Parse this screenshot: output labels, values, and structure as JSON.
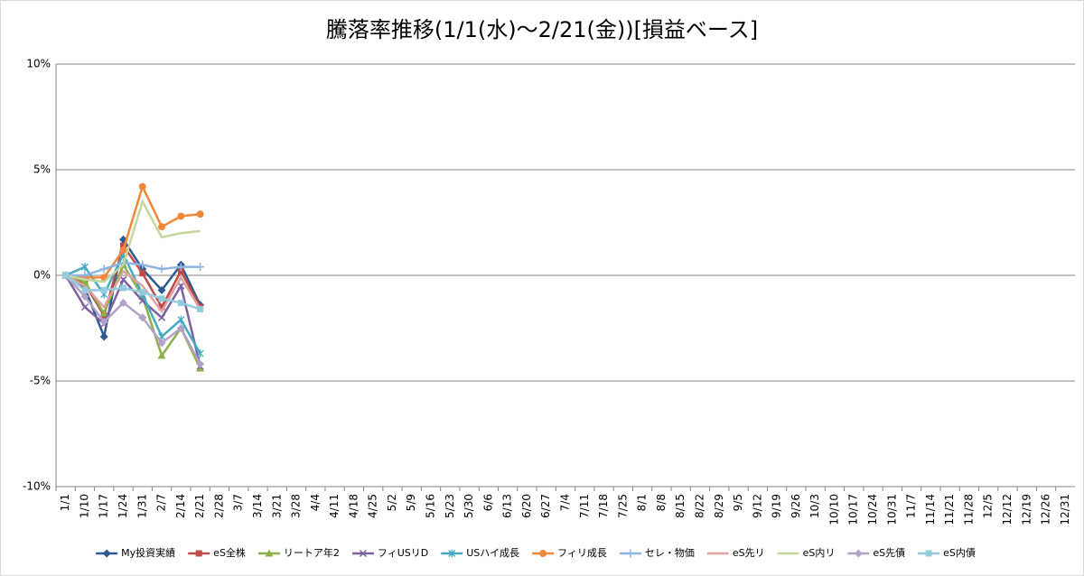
{
  "chart_data": {
    "type": "line",
    "title": "騰落率推移(1/1(水)～2/21(金))[損益ベース]",
    "categories": [
      "1/1",
      "1/10",
      "1/17",
      "1/24",
      "1/31",
      "2/7",
      "2/14",
      "2/21",
      "2/28",
      "3/7",
      "3/14",
      "3/21",
      "3/28",
      "4/4",
      "4/11",
      "4/18",
      "4/25",
      "5/2",
      "5/9",
      "5/16",
      "5/23",
      "5/30",
      "6/6",
      "6/13",
      "6/20",
      "6/27",
      "7/4",
      "7/11",
      "7/18",
      "7/25",
      "8/1",
      "8/8",
      "8/15",
      "8/22",
      "8/29",
      "9/5",
      "9/12",
      "9/19",
      "9/26",
      "10/3",
      "10/10",
      "10/17",
      "10/24",
      "10/31",
      "11/7",
      "11/14",
      "11/21",
      "11/28",
      "12/5",
      "12/12",
      "12/19",
      "12/26",
      "12/31"
    ],
    "ylim": [
      -10,
      10
    ],
    "yticks": [
      {
        "value": -10,
        "label": "-10%"
      },
      {
        "value": -5,
        "label": "-5%"
      },
      {
        "value": 0,
        "label": "0%"
      },
      {
        "value": 5,
        "label": "5%"
      },
      {
        "value": 10,
        "label": "10%"
      }
    ],
    "grid": true,
    "legend": "bottom",
    "series": [
      {
        "name": "My投資実績",
        "color": "#2e5b8f",
        "marker": "diamond",
        "values": [
          0,
          -0.6,
          -2.9,
          1.7,
          0.3,
          -0.7,
          0.5,
          -1.4,
          null,
          null,
          null,
          null,
          null,
          null,
          null,
          null,
          null,
          null,
          null,
          null,
          null,
          null,
          null,
          null,
          null,
          null,
          null,
          null,
          null,
          null,
          null,
          null,
          null,
          null,
          null,
          null,
          null,
          null,
          null,
          null,
          null,
          null,
          null,
          null,
          null,
          null,
          null,
          null,
          null,
          null,
          null,
          null,
          null
        ]
      },
      {
        "name": "eS全株",
        "color": "#be4b48",
        "marker": "square",
        "values": [
          0,
          -0.4,
          -1.9,
          1.4,
          0.1,
          -1.5,
          0.2,
          -1.5,
          null,
          null,
          null,
          null,
          null,
          null,
          null,
          null,
          null,
          null,
          null,
          null,
          null,
          null,
          null,
          null,
          null,
          null,
          null,
          null,
          null,
          null,
          null,
          null,
          null,
          null,
          null,
          null,
          null,
          null,
          null,
          null,
          null,
          null,
          null,
          null,
          null,
          null,
          null,
          null,
          null,
          null,
          null,
          null,
          null
        ]
      },
      {
        "name": "リートア年2",
        "color": "#8cb04a",
        "marker": "triangle",
        "values": [
          0,
          -0.3,
          -1.8,
          0.5,
          -1.0,
          -3.8,
          -2.5,
          -4.4,
          null,
          null,
          null,
          null,
          null,
          null,
          null,
          null,
          null,
          null,
          null,
          null,
          null,
          null,
          null,
          null,
          null,
          null,
          null,
          null,
          null,
          null,
          null,
          null,
          null,
          null,
          null,
          null,
          null,
          null,
          null,
          null,
          null,
          null,
          null,
          null,
          null,
          null,
          null,
          null,
          null,
          null,
          null,
          null,
          null
        ]
      },
      {
        "name": "フィUSリD",
        "color": "#7d60a0",
        "marker": "x",
        "values": [
          0,
          -1.5,
          -2.3,
          -0.2,
          -1.2,
          -2.0,
          -0.5,
          -4.3,
          null,
          null,
          null,
          null,
          null,
          null,
          null,
          null,
          null,
          null,
          null,
          null,
          null,
          null,
          null,
          null,
          null,
          null,
          null,
          null,
          null,
          null,
          null,
          null,
          null,
          null,
          null,
          null,
          null,
          null,
          null,
          null,
          null,
          null,
          null,
          null,
          null,
          null,
          null,
          null,
          null,
          null,
          null,
          null,
          null
        ]
      },
      {
        "name": "USハイ成長",
        "color": "#46aac5",
        "marker": "star",
        "values": [
          0,
          0.4,
          -0.9,
          1.0,
          -0.9,
          -2.9,
          -2.1,
          -3.7,
          null,
          null,
          null,
          null,
          null,
          null,
          null,
          null,
          null,
          null,
          null,
          null,
          null,
          null,
          null,
          null,
          null,
          null,
          null,
          null,
          null,
          null,
          null,
          null,
          null,
          null,
          null,
          null,
          null,
          null,
          null,
          null,
          null,
          null,
          null,
          null,
          null,
          null,
          null,
          null,
          null,
          null,
          null,
          null,
          null
        ]
      },
      {
        "name": "フィリ成長",
        "color": "#f0883a",
        "marker": "circle",
        "values": [
          0,
          -0.1,
          -0.1,
          1.2,
          4.2,
          2.3,
          2.8,
          2.9,
          null,
          null,
          null,
          null,
          null,
          null,
          null,
          null,
          null,
          null,
          null,
          null,
          null,
          null,
          null,
          null,
          null,
          null,
          null,
          null,
          null,
          null,
          null,
          null,
          null,
          null,
          null,
          null,
          null,
          null,
          null,
          null,
          null,
          null,
          null,
          null,
          null,
          null,
          null,
          null,
          null,
          null,
          null,
          null,
          null
        ]
      },
      {
        "name": "セレ・物価",
        "color": "#8eb4e3",
        "marker": "plus",
        "values": [
          0,
          0.0,
          0.3,
          0.6,
          0.5,
          0.3,
          0.4,
          0.4,
          null,
          null,
          null,
          null,
          null,
          null,
          null,
          null,
          null,
          null,
          null,
          null,
          null,
          null,
          null,
          null,
          null,
          null,
          null,
          null,
          null,
          null,
          null,
          null,
          null,
          null,
          null,
          null,
          null,
          null,
          null,
          null,
          null,
          null,
          null,
          null,
          null,
          null,
          null,
          null,
          null,
          null,
          null,
          null,
          null
        ]
      },
      {
        "name": "eS先リ",
        "color": "#e0a3a2",
        "marker": "none",
        "values": [
          0,
          -0.5,
          -1.5,
          0.2,
          -0.5,
          -1.7,
          -0.1,
          -1.6,
          null,
          null,
          null,
          null,
          null,
          null,
          null,
          null,
          null,
          null,
          null,
          null,
          null,
          null,
          null,
          null,
          null,
          null,
          null,
          null,
          null,
          null,
          null,
          null,
          null,
          null,
          null,
          null,
          null,
          null,
          null,
          null,
          null,
          null,
          null,
          null,
          null,
          null,
          null,
          null,
          null,
          null,
          null,
          null,
          null
        ]
      },
      {
        "name": "eS内リ",
        "color": "#c3d69b",
        "marker": "none",
        "values": [
          0,
          -0.2,
          -0.3,
          0.5,
          3.5,
          1.8,
          2.0,
          2.1,
          null,
          null,
          null,
          null,
          null,
          null,
          null,
          null,
          null,
          null,
          null,
          null,
          null,
          null,
          null,
          null,
          null,
          null,
          null,
          null,
          null,
          null,
          null,
          null,
          null,
          null,
          null,
          null,
          null,
          null,
          null,
          null,
          null,
          null,
          null,
          null,
          null,
          null,
          null,
          null,
          null,
          null,
          null,
          null,
          null
        ]
      },
      {
        "name": "eS先債",
        "color": "#b3a2c7",
        "marker": "diamond",
        "values": [
          0,
          -1.0,
          -2.2,
          -1.3,
          -2.0,
          -3.2,
          -2.5,
          -4.2,
          null,
          null,
          null,
          null,
          null,
          null,
          null,
          null,
          null,
          null,
          null,
          null,
          null,
          null,
          null,
          null,
          null,
          null,
          null,
          null,
          null,
          null,
          null,
          null,
          null,
          null,
          null,
          null,
          null,
          null,
          null,
          null,
          null,
          null,
          null,
          null,
          null,
          null,
          null,
          null,
          null,
          null,
          null,
          null,
          null
        ]
      },
      {
        "name": "eS内債",
        "color": "#93cddd",
        "marker": "square",
        "values": [
          0,
          -0.7,
          -0.7,
          -0.6,
          -0.8,
          -1.1,
          -1.3,
          -1.6,
          null,
          null,
          null,
          null,
          null,
          null,
          null,
          null,
          null,
          null,
          null,
          null,
          null,
          null,
          null,
          null,
          null,
          null,
          null,
          null,
          null,
          null,
          null,
          null,
          null,
          null,
          null,
          null,
          null,
          null,
          null,
          null,
          null,
          null,
          null,
          null,
          null,
          null,
          null,
          null,
          null,
          null,
          null,
          null,
          null
        ]
      }
    ]
  }
}
